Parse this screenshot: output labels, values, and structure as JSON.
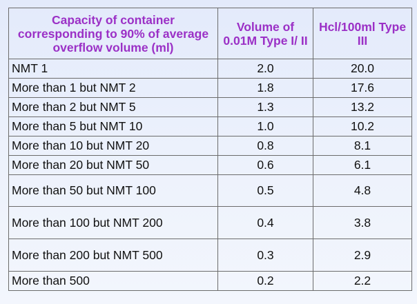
{
  "table": {
    "headers": [
      "Capacity of container corresponding to 90% of average overflow volume (ml)",
      "Volume of 0.01M Type I/ II",
      "Hcl/100ml Type III"
    ],
    "rows": [
      [
        "NMT 1",
        "2.0",
        "20.0"
      ],
      [
        "More than 1 but NMT 2",
        "1.8",
        "17.6"
      ],
      [
        "More than 2 but NMT 5",
        "1.3",
        "13.2"
      ],
      [
        "More than 5 but NMT 10",
        "1.0",
        "10.2"
      ],
      [
        "More than 10 but NMT 20",
        "0.8",
        "8.1"
      ],
      [
        "More than 20 but NMT 50",
        "0.6",
        "6.1"
      ],
      [
        "More than 50 but NMT 100",
        "0.5",
        "4.8"
      ],
      [
        "More than 100 but NMT 200",
        "0.4",
        "3.8"
      ],
      [
        "More than 200 but NMT 500",
        "0.3",
        "2.9"
      ],
      [
        "More than 500",
        "0.2",
        "2.2"
      ]
    ]
  },
  "colors": {
    "header_text": "#9b30c6",
    "body_text": "#111111",
    "border": "#6b6b6b",
    "background": "#e8eefb"
  }
}
